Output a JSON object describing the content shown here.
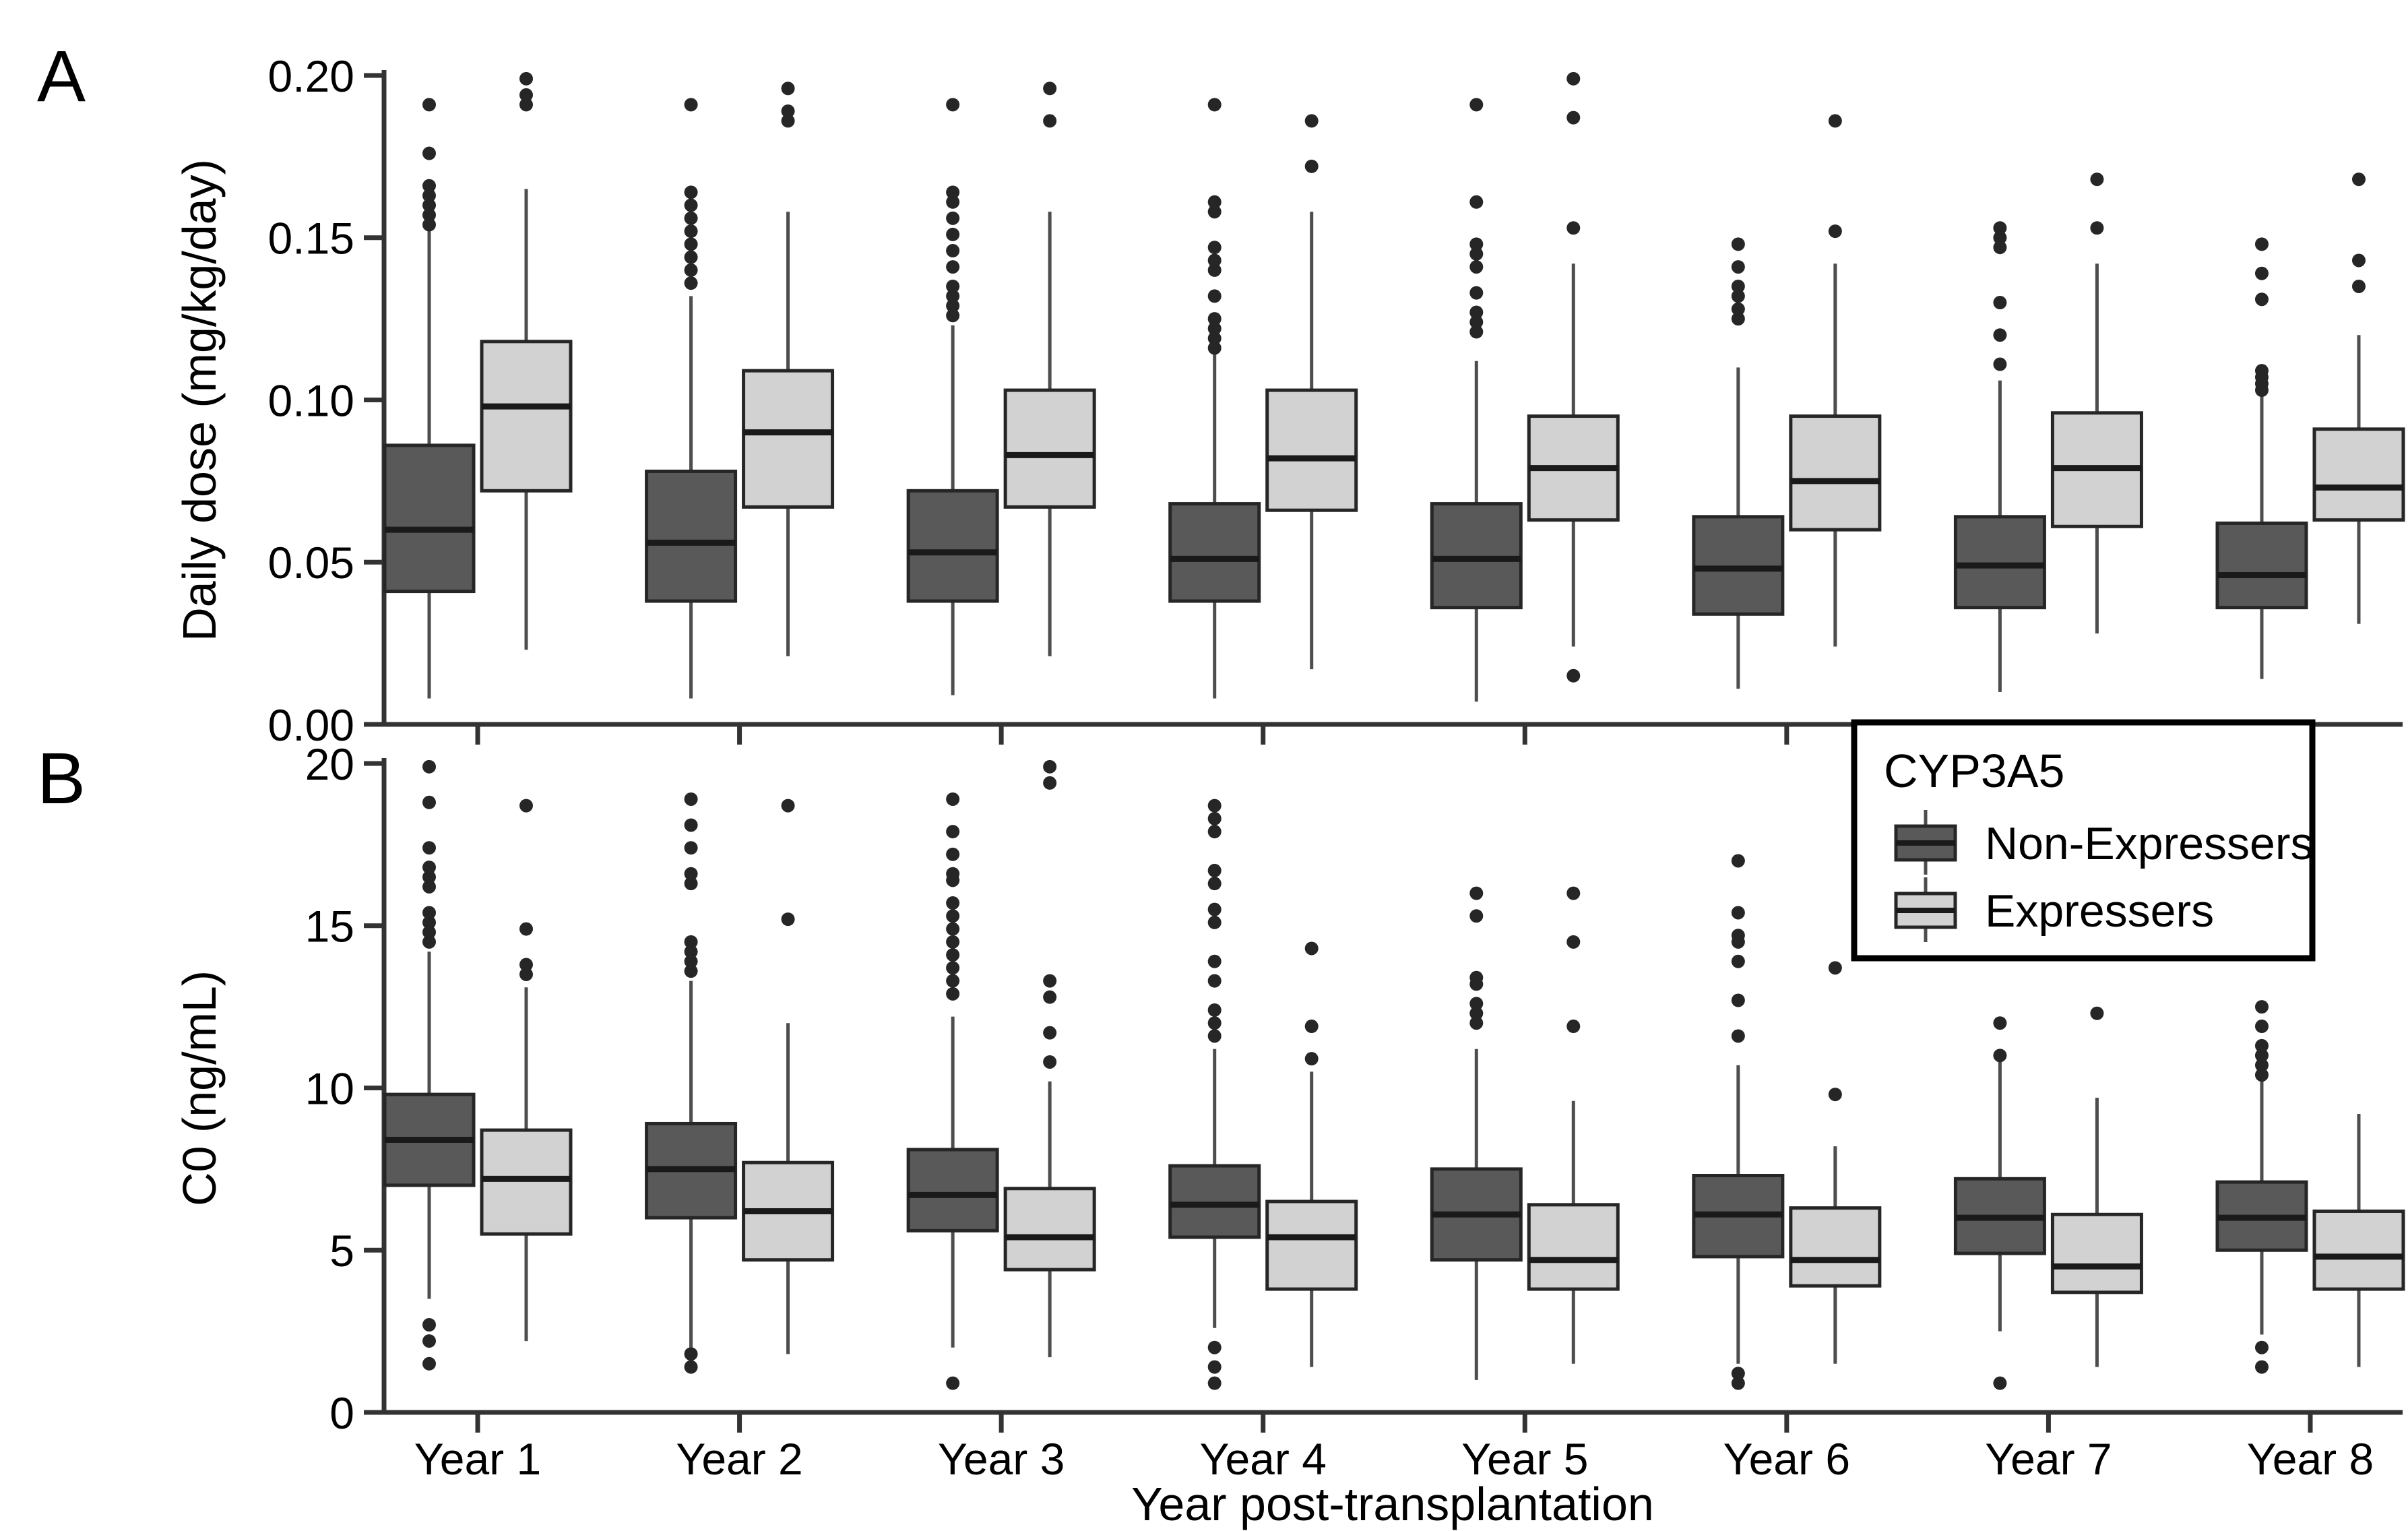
{
  "figure": {
    "panels": [
      {
        "label": "A",
        "y_axis_title": "Daily dose (mg/kg/day)"
      },
      {
        "label": "B",
        "y_axis_title": "C0 (ng/mL)"
      }
    ],
    "x_axis_title": "Year post-transplantation",
    "categories": [
      "Year 1",
      "Year 2",
      "Year 3",
      "Year 4",
      "Year 5",
      "Year 6",
      "Year 7",
      "Year 8"
    ],
    "legend": {
      "title": "CYP3A5",
      "items": [
        {
          "label": "Non-Expressers",
          "color_key": "non_expressers_fill"
        },
        {
          "label": "Expressers",
          "color_key": "expressers_fill"
        }
      ]
    }
  },
  "colors": {
    "non_expressers_fill": "#595959",
    "expressers_fill": "#d2d2d2",
    "box_border": "#262626",
    "median": "#1a1a1a",
    "whisker": "#4d4d4d",
    "outlier": "#262626",
    "axis": "#333333",
    "text": "#000000"
  },
  "chart_data": [
    {
      "type": "boxplot",
      "panel": "A",
      "ylabel": "Daily dose (mg/kg/day)",
      "xlabel": "Year post-transplantation",
      "ylim": [
        0,
        0.2
      ],
      "ytick_values": [
        0,
        0.05,
        0.1,
        0.15,
        0.2
      ],
      "ytick_labels": [
        "0.00",
        "0.05",
        "0.10",
        "0.15",
        "0.20"
      ],
      "grid": false,
      "categories": [
        "Year 1",
        "Year 2",
        "Year 3",
        "Year 4",
        "Year 5",
        "Year 6",
        "Year 7",
        "Year 8"
      ],
      "series": [
        {
          "name": "Non-Expressers",
          "color_key": "non_expressers_fill",
          "boxes": [
            {
              "low": 0.008,
              "q1": 0.041,
              "median": 0.06,
              "q3": 0.086,
              "high": 0.152,
              "outliers": [
                0.154,
                0.157,
                0.16,
                0.163,
                0.166,
                0.176,
                0.191
              ]
            },
            {
              "low": 0.008,
              "q1": 0.038,
              "median": 0.056,
              "q3": 0.078,
              "high": 0.132,
              "outliers": [
                0.136,
                0.14,
                0.144,
                0.148,
                0.152,
                0.156,
                0.16,
                0.164,
                0.191
              ]
            },
            {
              "low": 0.009,
              "q1": 0.038,
              "median": 0.053,
              "q3": 0.072,
              "high": 0.123,
              "outliers": [
                0.126,
                0.129,
                0.132,
                0.135,
                0.141,
                0.146,
                0.151,
                0.156,
                0.161,
                0.164,
                0.191
              ]
            },
            {
              "low": 0.008,
              "q1": 0.038,
              "median": 0.051,
              "q3": 0.068,
              "high": 0.114,
              "outliers": [
                0.116,
                0.119,
                0.122,
                0.125,
                0.132,
                0.14,
                0.143,
                0.147,
                0.158,
                0.161,
                0.191
              ]
            },
            {
              "low": 0.007,
              "q1": 0.036,
              "median": 0.051,
              "q3": 0.068,
              "high": 0.112,
              "outliers": [
                0.121,
                0.124,
                0.127,
                0.133,
                0.141,
                0.145,
                0.148,
                0.161,
                0.191
              ]
            },
            {
              "low": 0.011,
              "q1": 0.034,
              "median": 0.048,
              "q3": 0.064,
              "high": 0.11,
              "outliers": [
                0.125,
                0.128,
                0.132,
                0.135,
                0.141,
                0.148
              ]
            },
            {
              "low": 0.01,
              "q1": 0.036,
              "median": 0.049,
              "q3": 0.064,
              "high": 0.106,
              "outliers": [
                0.111,
                0.12,
                0.13,
                0.147,
                0.15,
                0.153
              ]
            },
            {
              "low": 0.014,
              "q1": 0.036,
              "median": 0.046,
              "q3": 0.062,
              "high": 0.101,
              "outliers": [
                0.103,
                0.105,
                0.107,
                0.109,
                0.131,
                0.139,
                0.148
              ]
            }
          ]
        },
        {
          "name": "Expressers",
          "color_key": "expressers_fill",
          "boxes": [
            {
              "low": 0.023,
              "q1": 0.072,
              "median": 0.098,
              "q3": 0.118,
              "high": 0.165,
              "outliers": [
                0.191,
                0.194,
                0.199
              ]
            },
            {
              "low": 0.021,
              "q1": 0.067,
              "median": 0.09,
              "q3": 0.109,
              "high": 0.158,
              "outliers": [
                0.186,
                0.189,
                0.196
              ]
            },
            {
              "low": 0.021,
              "q1": 0.067,
              "median": 0.083,
              "q3": 0.103,
              "high": 0.158,
              "outliers": [
                0.186,
                0.196
              ]
            },
            {
              "low": 0.017,
              "q1": 0.066,
              "median": 0.082,
              "q3": 0.103,
              "high": 0.158,
              "outliers": [
                0.172,
                0.186
              ]
            },
            {
              "low": 0.024,
              "q1": 0.063,
              "median": 0.079,
              "q3": 0.095,
              "high": 0.142,
              "outliers": [
                0.015,
                0.153,
                0.187,
                0.199
              ]
            },
            {
              "low": 0.024,
              "q1": 0.06,
              "median": 0.075,
              "q3": 0.095,
              "high": 0.142,
              "outliers": [
                0.152,
                0.186
              ]
            },
            {
              "low": 0.028,
              "q1": 0.061,
              "median": 0.079,
              "q3": 0.096,
              "high": 0.142,
              "outliers": [
                0.153,
                0.168
              ]
            },
            {
              "low": 0.031,
              "q1": 0.063,
              "median": 0.073,
              "q3": 0.091,
              "high": 0.12,
              "outliers": [
                0.135,
                0.143,
                0.168
              ]
            }
          ]
        }
      ]
    },
    {
      "type": "boxplot",
      "panel": "B",
      "ylabel": "C0 (ng/mL)",
      "xlabel": "Year post-transplantation",
      "ylim": [
        0,
        20
      ],
      "ytick_values": [
        0,
        5,
        10,
        15,
        20
      ],
      "ytick_labels": [
        "0",
        "5",
        "10",
        "15",
        "20"
      ],
      "grid": false,
      "categories": [
        "Year 1",
        "Year 2",
        "Year 3",
        "Year 4",
        "Year 5",
        "Year 6",
        "Year 7",
        "Year 8"
      ],
      "series": [
        {
          "name": "Non-Expressers",
          "color_key": "non_expressers_fill",
          "boxes": [
            {
              "low": 3.5,
              "q1": 7.0,
              "median": 8.4,
              "q3": 9.8,
              "high": 14.2,
              "outliers": [
                1.5,
                2.2,
                2.7,
                14.5,
                14.8,
                15.1,
                15.4,
                16.2,
                16.5,
                16.8,
                17.4,
                18.8,
                19.9
              ]
            },
            {
              "low": 2.0,
              "q1": 6.0,
              "median": 7.5,
              "q3": 8.9,
              "high": 13.3,
              "outliers": [
                1.4,
                1.8,
                13.6,
                13.9,
                14.2,
                14.5,
                16.3,
                16.6,
                17.4,
                18.1,
                18.9
              ]
            },
            {
              "low": 2.0,
              "q1": 5.6,
              "median": 6.7,
              "q3": 8.1,
              "high": 12.2,
              "outliers": [
                0.9,
                12.9,
                13.3,
                13.7,
                14.1,
                14.5,
                14.9,
                15.3,
                15.7,
                16.4,
                16.6,
                17.2,
                17.9,
                18.9
              ]
            },
            {
              "low": 2.6,
              "q1": 5.4,
              "median": 6.4,
              "q3": 7.6,
              "high": 11.2,
              "outliers": [
                0.9,
                1.4,
                2.0,
                11.6,
                12.0,
                12.4,
                13.3,
                13.9,
                15.1,
                15.5,
                16.3,
                16.7,
                17.9,
                18.3,
                18.7
              ]
            },
            {
              "low": 1.0,
              "q1": 4.7,
              "median": 6.1,
              "q3": 7.5,
              "high": 11.2,
              "outliers": [
                12.0,
                12.3,
                12.6,
                13.2,
                13.4,
                15.3,
                16.0
              ]
            },
            {
              "low": 1.5,
              "q1": 4.8,
              "median": 6.1,
              "q3": 7.3,
              "high": 10.7,
              "outliers": [
                0.9,
                1.2,
                11.6,
                12.7,
                13.9,
                14.5,
                14.7,
                15.4,
                17.0
              ]
            },
            {
              "low": 2.5,
              "q1": 4.9,
              "median": 6.0,
              "q3": 7.2,
              "high": 10.8,
              "outliers": [
                0.9,
                11.0,
                12.0
              ]
            },
            {
              "low": 2.4,
              "q1": 5.0,
              "median": 6.0,
              "q3": 7.1,
              "high": 10.2,
              "outliers": [
                1.4,
                2.0,
                10.4,
                10.7,
                11.0,
                11.3,
                11.9,
                12.5
              ]
            }
          ]
        },
        {
          "name": "Expressers",
          "color_key": "expressers_fill",
          "boxes": [
            {
              "low": 2.2,
              "q1": 5.5,
              "median": 7.2,
              "q3": 8.7,
              "high": 13.1,
              "outliers": [
                13.5,
                13.8,
                14.9,
                18.7
              ]
            },
            {
              "low": 1.8,
              "q1": 4.7,
              "median": 6.2,
              "q3": 7.7,
              "high": 12.0,
              "outliers": [
                15.2,
                18.7
              ]
            },
            {
              "low": 1.7,
              "q1": 4.4,
              "median": 5.4,
              "q3": 6.9,
              "high": 10.2,
              "outliers": [
                10.8,
                11.7,
                12.8,
                13.3,
                19.4,
                19.9
              ]
            },
            {
              "low": 1.4,
              "q1": 3.8,
              "median": 5.4,
              "q3": 6.5,
              "high": 10.5,
              "outliers": [
                10.9,
                11.9,
                14.3
              ]
            },
            {
              "low": 1.5,
              "q1": 3.8,
              "median": 4.7,
              "q3": 6.4,
              "high": 9.6,
              "outliers": [
                11.9,
                14.5,
                16.0
              ]
            },
            {
              "low": 1.5,
              "q1": 3.9,
              "median": 4.7,
              "q3": 6.3,
              "high": 8.2,
              "outliers": [
                9.8,
                13.7
              ]
            },
            {
              "low": 1.4,
              "q1": 3.7,
              "median": 4.5,
              "q3": 6.1,
              "high": 9.7,
              "outliers": [
                12.3
              ]
            },
            {
              "low": 1.4,
              "q1": 3.8,
              "median": 4.8,
              "q3": 6.2,
              "high": 9.2,
              "outliers": []
            }
          ]
        }
      ]
    }
  ]
}
